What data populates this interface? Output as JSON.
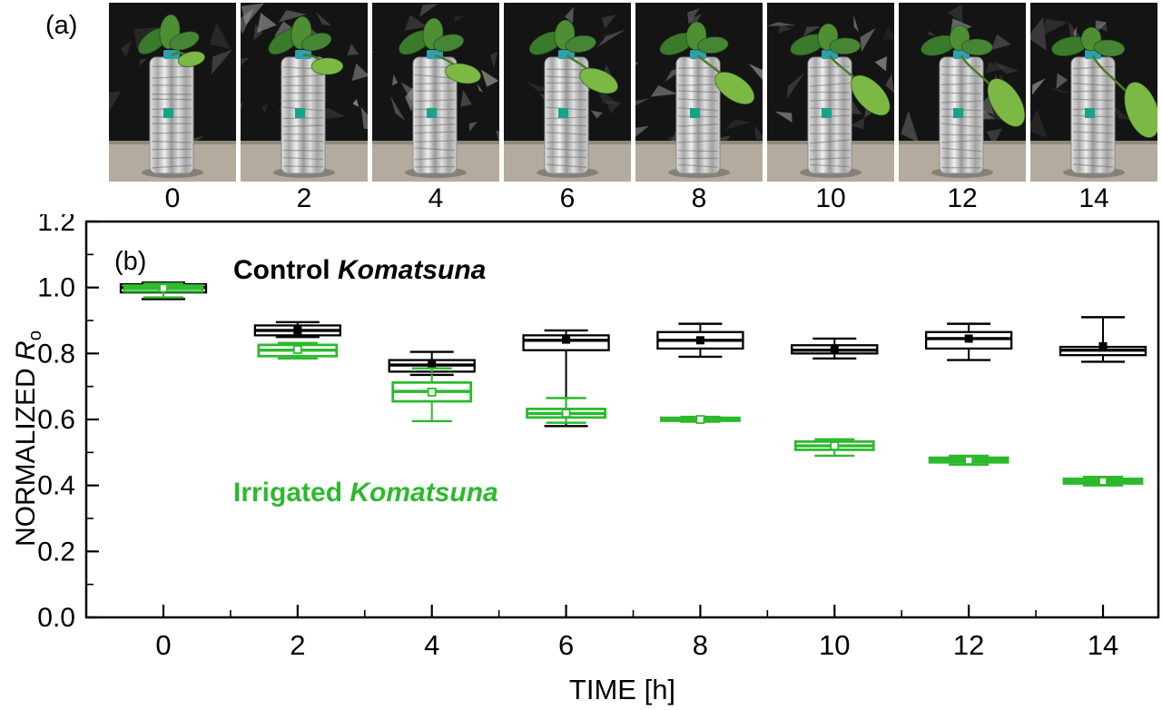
{
  "panel_a": {
    "label": "(a)",
    "photo_times": [
      "0",
      "2",
      "4",
      "6",
      "8",
      "10",
      "12",
      "14"
    ],
    "photo_description": "Komatsuna plant in a foil-wrapped bottle against black plastic, progressively wilting over time"
  },
  "panel_b": {
    "label": "(b)",
    "annotations": {
      "control_prefix": "Control ",
      "control_species": "Komatsuna",
      "irrigated_prefix": "Irrigated ",
      "irrigated_species": "Komatsuna"
    },
    "axis": {
      "xlabel": "TIME [h]",
      "ylabel_text": "NORMALIZED ",
      "ylabel_symbol": "R",
      "ylabel_subscript": "o"
    }
  },
  "colors": {
    "control": "#000000",
    "irrigated": "#2db92d"
  },
  "chart_data": {
    "type": "boxplot",
    "title": "",
    "xlabel": "TIME [h]",
    "ylabel": "NORMALIZED R_o",
    "x": [
      0,
      2,
      4,
      6,
      8,
      10,
      12,
      14
    ],
    "xticks": [
      0,
      2,
      4,
      6,
      8,
      10,
      12,
      14
    ],
    "ylim": [
      0.0,
      1.2
    ],
    "yticks": [
      0.0,
      0.2,
      0.4,
      0.6,
      0.8,
      1.0,
      1.2
    ],
    "grid": false,
    "legend_position": "inside-annotations",
    "series": [
      {
        "name": "Control Komatsuna",
        "color": "#000000",
        "boxes": [
          {
            "x": 0,
            "low": 0.965,
            "q1": 0.985,
            "median": 1.0,
            "q3": 1.01,
            "high": 1.015,
            "mean": 1.0
          },
          {
            "x": 2,
            "low": 0.85,
            "q1": 0.855,
            "median": 0.87,
            "q3": 0.885,
            "high": 0.895,
            "mean": 0.87
          },
          {
            "x": 4,
            "low": 0.735,
            "q1": 0.745,
            "median": 0.765,
            "q3": 0.78,
            "high": 0.805,
            "mean": 0.765
          },
          {
            "x": 6,
            "low": 0.58,
            "q1": 0.81,
            "median": 0.84,
            "q3": 0.855,
            "high": 0.87,
            "mean": 0.842
          },
          {
            "x": 8,
            "low": 0.79,
            "q1": 0.815,
            "median": 0.84,
            "q3": 0.865,
            "high": 0.89,
            "mean": 0.84
          },
          {
            "x": 10,
            "low": 0.785,
            "q1": 0.8,
            "median": 0.81,
            "q3": 0.825,
            "high": 0.845,
            "mean": 0.812
          },
          {
            "x": 12,
            "low": 0.78,
            "q1": 0.815,
            "median": 0.845,
            "q3": 0.865,
            "high": 0.89,
            "mean": 0.845
          },
          {
            "x": 14,
            "low": 0.775,
            "q1": 0.795,
            "median": 0.81,
            "q3": 0.82,
            "high": 0.91,
            "mean": 0.822
          }
        ]
      },
      {
        "name": "Irrigated Komatsuna",
        "color": "#2db92d",
        "boxes": [
          {
            "x": 0,
            "low": 0.97,
            "q1": 0.988,
            "median": 0.998,
            "q3": 1.006,
            "high": 1.012,
            "mean": 0.998
          },
          {
            "x": 2,
            "low": 0.785,
            "q1": 0.792,
            "median": 0.81,
            "q3": 0.826,
            "high": 0.832,
            "mean": 0.812
          },
          {
            "x": 4,
            "low": 0.595,
            "q1": 0.655,
            "median": 0.685,
            "q3": 0.712,
            "high": 0.755,
            "mean": 0.683
          },
          {
            "x": 6,
            "low": 0.59,
            "q1": 0.606,
            "median": 0.618,
            "q3": 0.632,
            "high": 0.665,
            "mean": 0.619
          },
          {
            "x": 8,
            "low": 0.593,
            "q1": 0.596,
            "median": 0.6,
            "q3": 0.605,
            "high": 0.608,
            "mean": 0.6
          },
          {
            "x": 10,
            "low": 0.49,
            "q1": 0.508,
            "median": 0.52,
            "q3": 0.533,
            "high": 0.54,
            "mean": 0.52
          },
          {
            "x": 12,
            "low": 0.463,
            "q1": 0.47,
            "median": 0.476,
            "q3": 0.484,
            "high": 0.49,
            "mean": 0.476
          },
          {
            "x": 14,
            "low": 0.4,
            "q1": 0.406,
            "median": 0.413,
            "q3": 0.42,
            "high": 0.426,
            "mean": 0.413
          }
        ]
      }
    ]
  }
}
